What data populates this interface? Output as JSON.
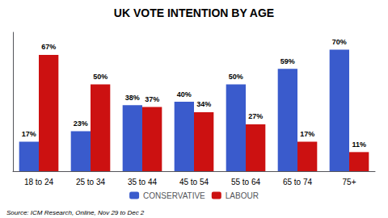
{
  "chart_data": {
    "type": "bar",
    "title": "UK VOTE INTENTION BY AGE",
    "categories": [
      "18 to 24",
      "25 to 34",
      "35 to 44",
      "45 to 54",
      "55 to 64",
      "65 to 74",
      "75+"
    ],
    "series": [
      {
        "name": "CONSERVATIVE",
        "color": "#3a5bcc",
        "values": [
          17,
          23,
          38,
          40,
          50,
          59,
          70
        ],
        "value_labels": [
          "17%",
          "23%",
          "38%",
          "40%",
          "50%",
          "59%",
          "70%"
        ]
      },
      {
        "name": "LABOUR",
        "color": "#cc1111",
        "values": [
          67,
          50,
          37,
          34,
          27,
          17,
          11
        ],
        "value_labels": [
          "67%",
          "50%",
          "37%",
          "34%",
          "27%",
          "17%",
          "11%"
        ]
      }
    ],
    "ylim": [
      0,
      80
    ],
    "yticks": [],
    "grid": false,
    "legend": "bottom",
    "data_labels": true,
    "tick_labels": "x",
    "annotation": "Source: ICM Research, Online, Nov 29 to Dec 2"
  }
}
